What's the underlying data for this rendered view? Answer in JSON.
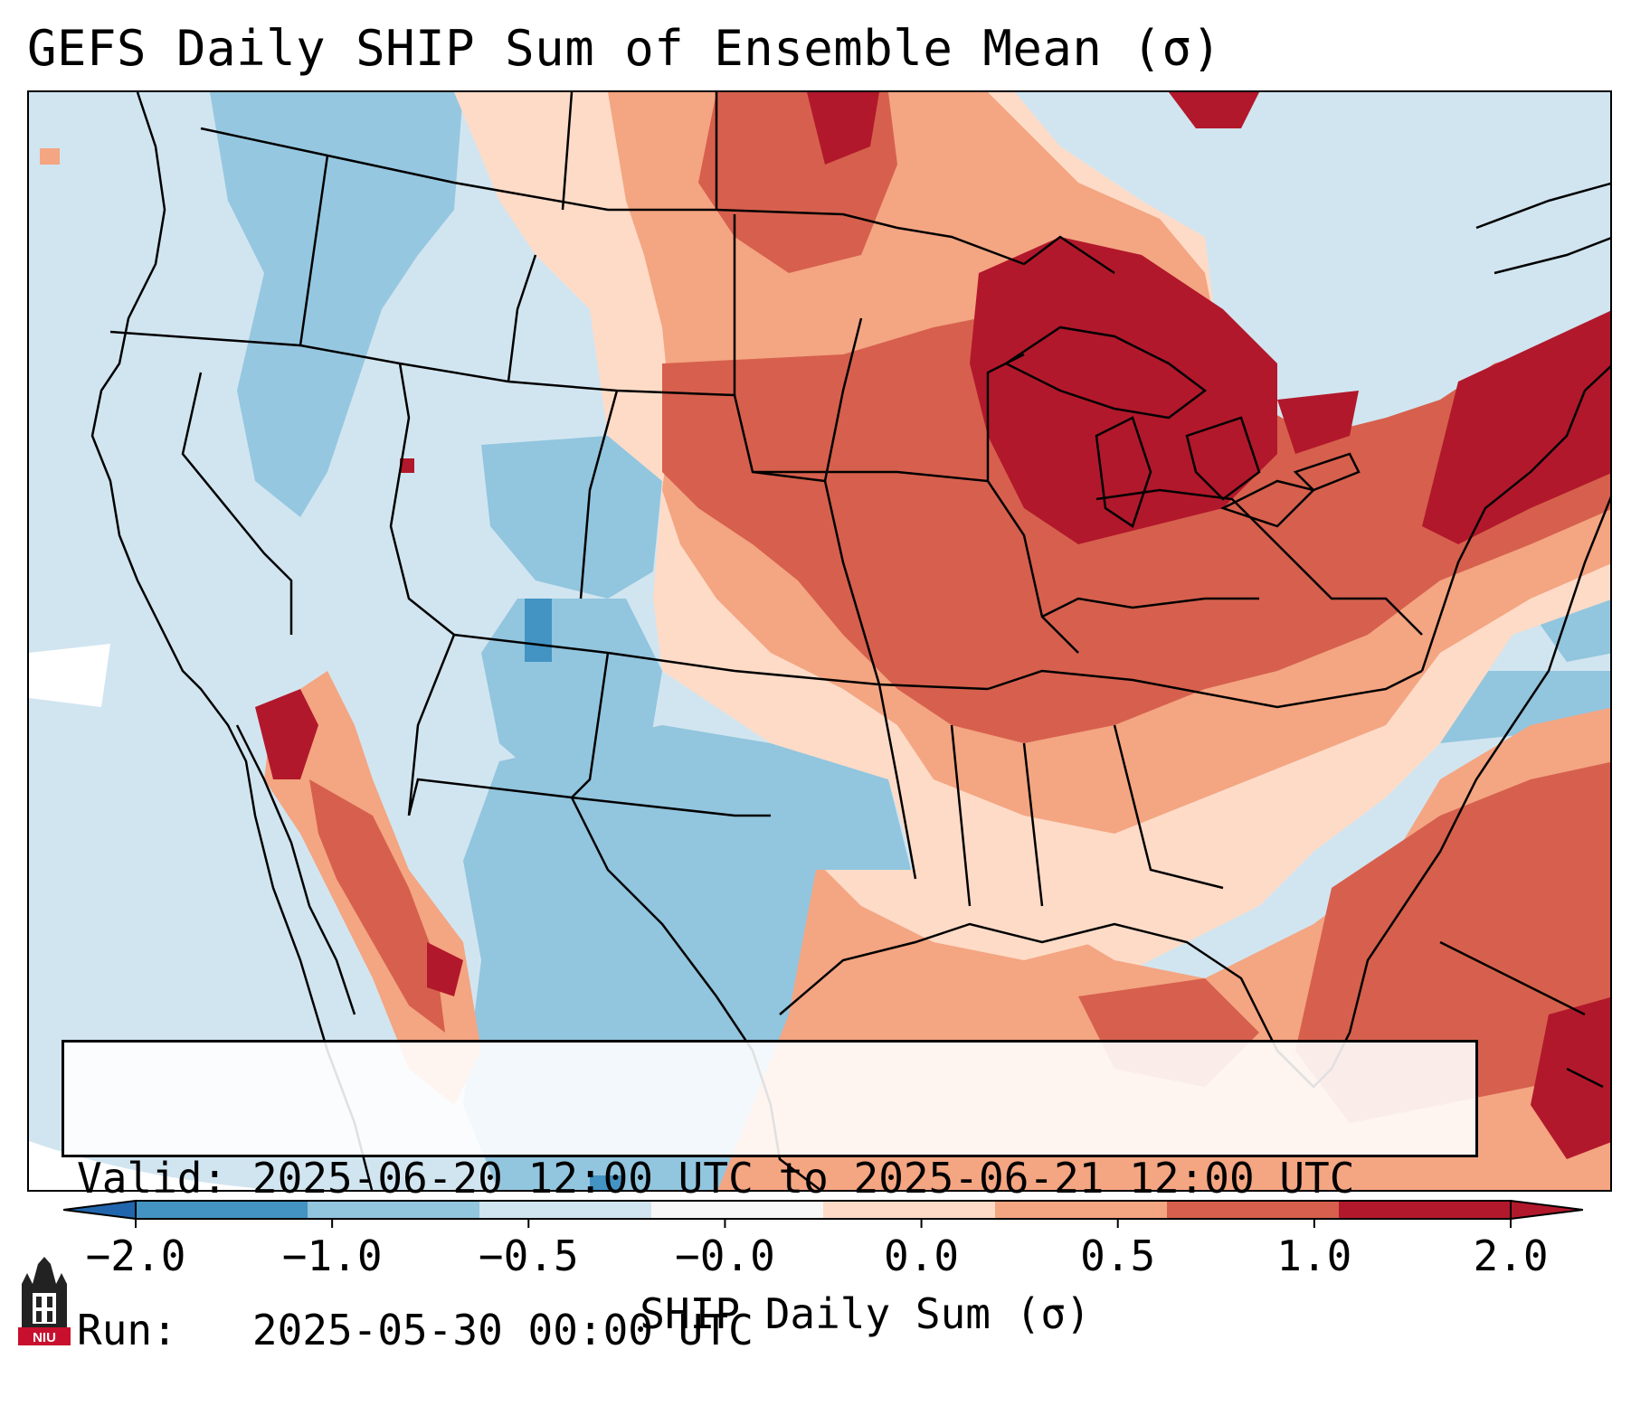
{
  "title": "GEFS Daily SHIP Sum of Ensemble Mean (σ)",
  "info": {
    "valid_label": "Valid:",
    "valid_value": "2025-06-20 12:00 UTC to 2025-06-21 12:00 UTC",
    "run_label": "Run:",
    "run_value": "2025-05-30 00:00 UTC"
  },
  "colorbar": {
    "label": "SHIP Daily Sum (σ)",
    "ticks": [
      "−2.0",
      "−1.0",
      "−0.5",
      "−0.0",
      "0.0",
      "0.5",
      "1.0",
      "2.0"
    ],
    "colors": [
      "#4393c3",
      "#92c5de",
      "#d1e5f0",
      "#f7f7f7",
      "#fddbc7",
      "#f4a582",
      "#d6604d",
      "#b2182b"
    ],
    "under_color": "#2166ac",
    "over_color": "#b2182b"
  },
  "logo": {
    "text": "NIU",
    "color": "#c8102e"
  },
  "icons": {
    "logo": "university-tower-icon"
  }
}
